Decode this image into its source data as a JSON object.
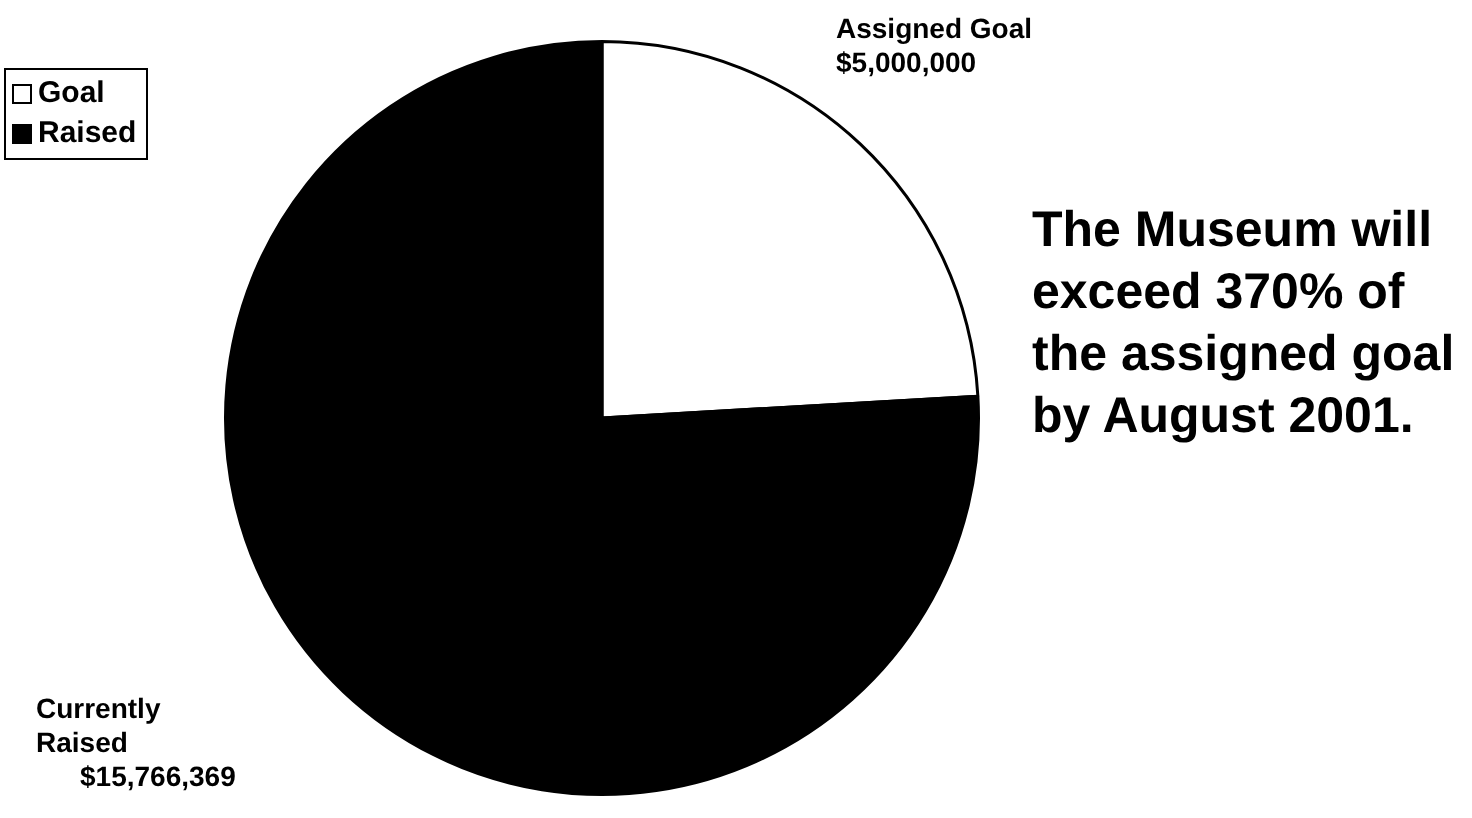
{
  "chart_data": {
    "type": "pie",
    "categories": [
      "Goal",
      "Raised"
    ],
    "values": [
      5000000,
      15766369
    ],
    "colors": [
      "#ffffff",
      "#000000"
    ],
    "value_labels": [
      "$5,000,000",
      "$15,766,369"
    ],
    "legend": "top left",
    "annotations": [
      "Assigned Goal",
      "Currently Raised",
      "The Museum will exceed 370% of the assigned goal by August 2001."
    ]
  }
}
